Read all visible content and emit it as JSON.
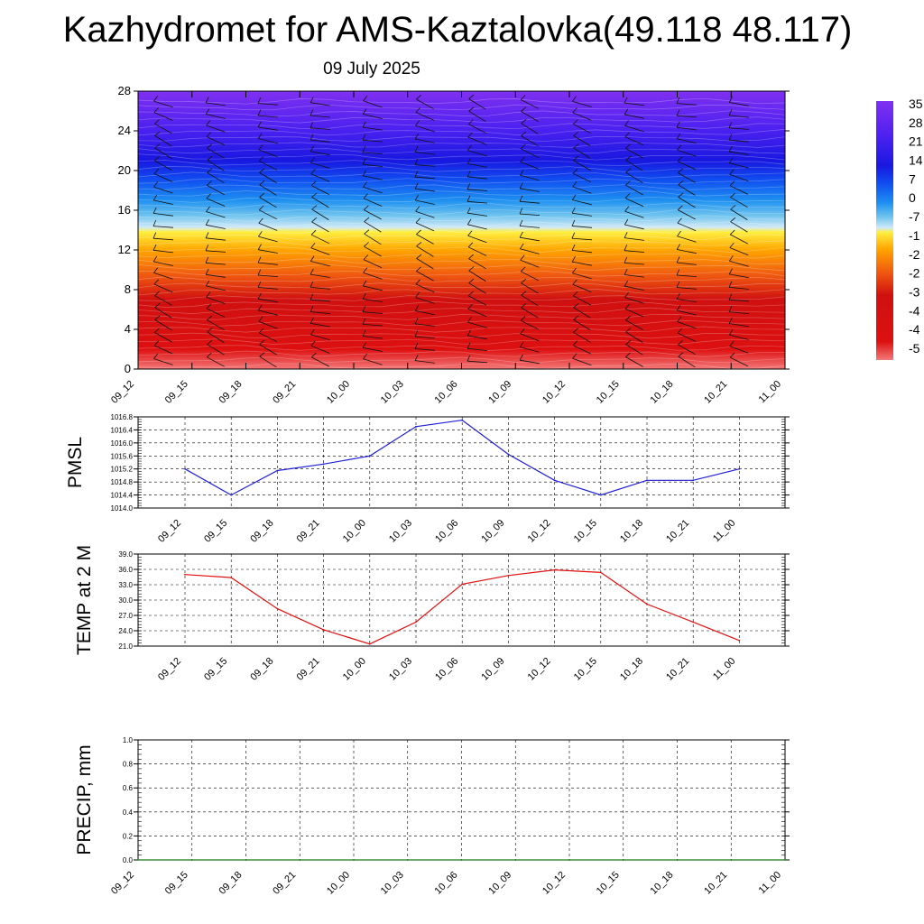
{
  "header": {
    "title": "Kazhydromet for AMS-Kaztalovka(49.118 48.117)",
    "subtitle": "09 July 2025"
  },
  "colors": {
    "pmsl_line": "#1f1fd6",
    "temp_line": "#e01010",
    "precip_line": "#1a7a1a"
  },
  "chart_data": [
    {
      "type": "heatmap",
      "name": "vertical-cross-section",
      "x_tick_labels": [
        "09_12",
        "09_15",
        "09_18",
        "09_21",
        "10_00",
        "10_03",
        "10_06",
        "10_09",
        "10_12",
        "10_15",
        "10_18",
        "10_21",
        "11_00"
      ],
      "y_ticks": [
        0,
        4,
        8,
        12,
        16,
        20,
        24,
        28
      ],
      "ylim": [
        0,
        28
      ],
      "colorbar_labels": [
        "35",
        "28",
        "21",
        "14",
        "7",
        "0",
        "-7",
        "-1",
        "-2",
        "-2",
        "-3",
        "-4",
        "-4",
        "-5"
      ],
      "colorscale_stops": [
        {
          "level": 0.0,
          "color": "#f47878"
        },
        {
          "level": 2.0,
          "color": "#dd1010"
        },
        {
          "level": 7.0,
          "color": "#d01010"
        },
        {
          "level": 9.5,
          "color": "#f05a10"
        },
        {
          "level": 12.0,
          "color": "#ffa500"
        },
        {
          "level": 13.8,
          "color": "#ffef40"
        },
        {
          "level": 14.3,
          "color": "#cfe9f8"
        },
        {
          "level": 15.5,
          "color": "#6ec3ee"
        },
        {
          "level": 17.0,
          "color": "#1e90f0"
        },
        {
          "level": 19.0,
          "color": "#1050f0"
        },
        {
          "level": 21.0,
          "color": "#1818e0"
        },
        {
          "level": 24.0,
          "color": "#4a20f0"
        },
        {
          "level": 28.0,
          "color": "#8030f0"
        }
      ],
      "wind_barbs": "present"
    },
    {
      "type": "line",
      "name": "pmsl",
      "ylabel": "PMSL",
      "categories": [
        "09_12",
        "09_15",
        "09_18",
        "09_21",
        "10_00",
        "10_03",
        "10_06",
        "10_09",
        "10_12",
        "10_15",
        "10_18",
        "10_21",
        "11_00"
      ],
      "values": [
        1015.2,
        1014.4,
        1015.15,
        1015.35,
        1015.6,
        1016.5,
        1016.7,
        1015.65,
        1014.85,
        1014.4,
        1014.85,
        1014.85,
        1015.2
      ],
      "ylim": [
        1014.0,
        1016.8
      ],
      "y_ticks": [
        1014.0,
        1014.4,
        1014.8,
        1015.2,
        1015.6,
        1016.0,
        1016.4,
        1016.8
      ],
      "y_tick_labels": [
        "1014.0",
        "1014.4",
        "1014.8",
        "1015.2",
        "1015.6",
        "1016.0",
        "1016.4",
        "1016.8"
      ],
      "grid": true
    },
    {
      "type": "line",
      "name": "temp-2m",
      "ylabel": "TEMP at 2 M",
      "categories": [
        "09_12",
        "09_15",
        "09_18",
        "09_21",
        "10_00",
        "10_03",
        "10_06",
        "10_09",
        "10_12",
        "10_15",
        "10_18",
        "10_21",
        "11_00"
      ],
      "values": [
        35.0,
        34.4,
        28.3,
        24.2,
        21.4,
        25.7,
        33.1,
        34.8,
        35.9,
        35.4,
        29.2,
        25.7,
        22.1
      ],
      "ylim": [
        21.0,
        39.0
      ],
      "y_ticks": [
        21,
        24,
        27,
        30,
        33,
        36,
        39
      ],
      "y_tick_labels": [
        "21.0",
        "24.0",
        "27.0",
        "30.0",
        "33.0",
        "36.0",
        "39.0"
      ],
      "grid": true
    },
    {
      "type": "line",
      "name": "precip",
      "ylabel": "PRECIP, mm",
      "categories": [
        "09_12",
        "09_15",
        "09_18",
        "09_21",
        "10_00",
        "10_03",
        "10_06",
        "10_09",
        "10_12",
        "10_15",
        "10_18",
        "10_21",
        "11_00"
      ],
      "values": [
        0,
        0,
        0,
        0,
        0,
        0,
        0,
        0,
        0,
        0,
        0,
        0,
        0
      ],
      "ylim": [
        0.0,
        1.0
      ],
      "y_ticks": [
        0.0,
        0.2,
        0.4,
        0.6,
        0.8,
        1.0
      ],
      "y_tick_labels": [
        "0.0",
        "0.2",
        "0.4",
        "0.6",
        "0.8",
        "1.0"
      ],
      "grid": true
    }
  ]
}
